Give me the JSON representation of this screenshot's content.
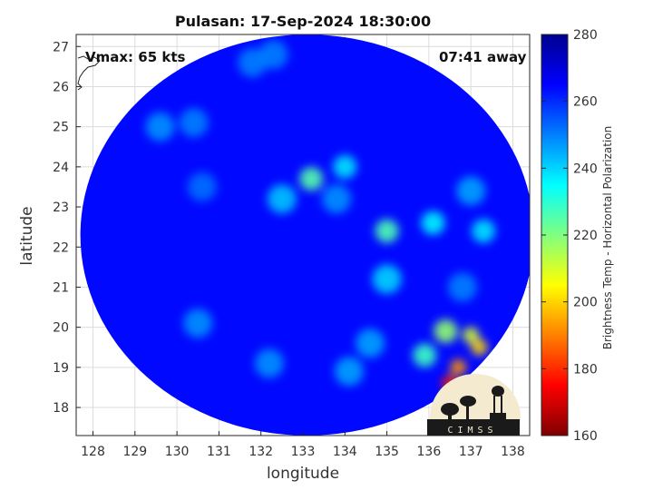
{
  "chart_data": {
    "type": "heatmap",
    "title": "Pulasan: 17-Sep-2024 18:30:00",
    "xlabel": "longitude",
    "ylabel": "latitude",
    "xlim": [
      127.6,
      138.4
    ],
    "ylim": [
      17.3,
      27.3
    ],
    "x_ticks": [
      128,
      129,
      130,
      131,
      132,
      133,
      134,
      135,
      136,
      137,
      138
    ],
    "y_ticks": [
      18,
      19,
      20,
      21,
      22,
      23,
      24,
      25,
      26,
      27
    ],
    "grid": true,
    "colorbar": {
      "label": "Brightness Temp - Horizontal Polarization",
      "range": [
        160,
        280
      ],
      "ticks": [
        160,
        180,
        200,
        220,
        240,
        260,
        280
      ],
      "colormap": "jet"
    },
    "annotations": {
      "vmax": "Vmax: 65 kts",
      "time_away": "07:41 away"
    },
    "swath": {
      "center_lon": 133.1,
      "center_lat": 22.3,
      "background_value": 264
    },
    "features": [
      {
        "lon": 133.2,
        "lat": 23.7,
        "value": 225
      },
      {
        "lon": 134.0,
        "lat": 24.0,
        "value": 238
      },
      {
        "lon": 132.5,
        "lat": 23.2,
        "value": 242
      },
      {
        "lon": 133.8,
        "lat": 23.2,
        "value": 248
      },
      {
        "lon": 135.0,
        "lat": 22.4,
        "value": 226
      },
      {
        "lon": 135.0,
        "lat": 21.2,
        "value": 240
      },
      {
        "lon": 136.1,
        "lat": 22.6,
        "value": 236
      },
      {
        "lon": 137.3,
        "lat": 22.4,
        "value": 238
      },
      {
        "lon": 137.0,
        "lat": 23.4,
        "value": 246
      },
      {
        "lon": 136.8,
        "lat": 21.0,
        "value": 250
      },
      {
        "lon": 137.0,
        "lat": 19.8,
        "value": 210
      },
      {
        "lon": 137.2,
        "lat": 19.5,
        "value": 200
      },
      {
        "lon": 136.7,
        "lat": 19.0,
        "value": 192
      },
      {
        "lon": 136.4,
        "lat": 19.9,
        "value": 218
      },
      {
        "lon": 135.9,
        "lat": 19.3,
        "value": 228
      },
      {
        "lon": 136.5,
        "lat": 18.6,
        "value": 178
      },
      {
        "lon": 134.6,
        "lat": 19.6,
        "value": 246
      },
      {
        "lon": 134.1,
        "lat": 18.9,
        "value": 246
      },
      {
        "lon": 132.2,
        "lat": 19.1,
        "value": 248
      },
      {
        "lon": 130.5,
        "lat": 20.1,
        "value": 248
      },
      {
        "lon": 129.6,
        "lat": 25.0,
        "value": 248
      },
      {
        "lon": 130.4,
        "lat": 25.1,
        "value": 250
      },
      {
        "lon": 131.8,
        "lat": 26.6,
        "value": 250
      },
      {
        "lon": 132.3,
        "lat": 26.8,
        "value": 250
      },
      {
        "lon": 130.6,
        "lat": 23.5,
        "value": 252
      }
    ],
    "logo_text": "CIMSS"
  }
}
